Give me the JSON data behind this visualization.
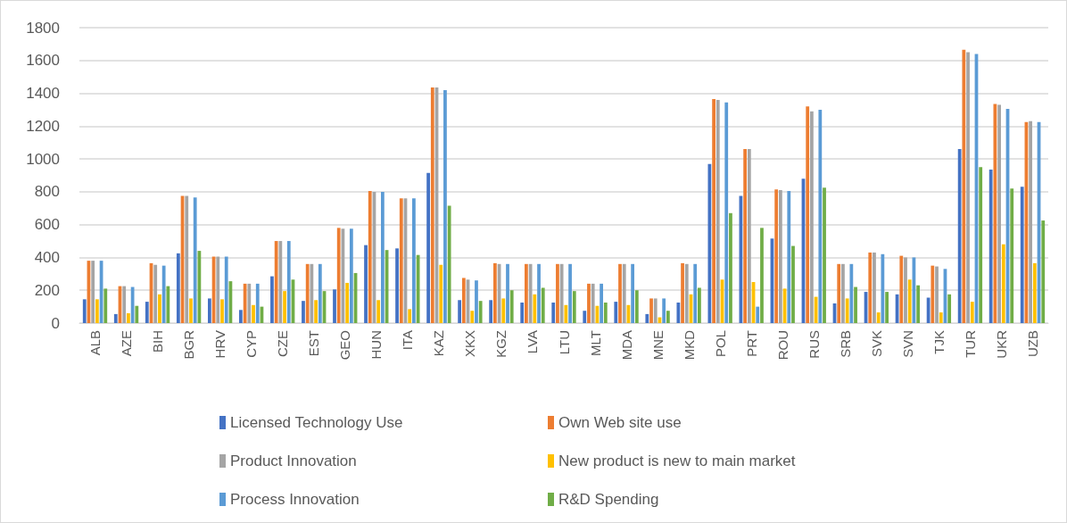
{
  "chart_data": {
    "type": "bar",
    "categories": [
      "ALB",
      "AZE",
      "BIH",
      "BGR",
      "HRV",
      "CYP",
      "CZE",
      "EST",
      "GEO",
      "HUN",
      "ITA",
      "KAZ",
      "XKX",
      "KGZ",
      "LVA",
      "LTU",
      "MLT",
      "MDA",
      "MNE",
      "MKD",
      "POL",
      "PRT",
      "ROU",
      "RUS",
      "SRB",
      "SVK",
      "SVN",
      "TJK",
      "TUR",
      "UKR",
      "UZB"
    ],
    "series": [
      {
        "name": "Licensed Technology Use",
        "color": "#4472c4",
        "values": [
          145,
          55,
          130,
          425,
          150,
          80,
          285,
          135,
          205,
          475,
          455,
          915,
          140,
          140,
          125,
          125,
          75,
          130,
          55,
          125,
          970,
          775,
          515,
          880,
          120,
          190,
          175,
          155,
          1060,
          935,
          830
        ]
      },
      {
        "name": "Own Web site use",
        "color": "#ed7d31",
        "values": [
          380,
          225,
          365,
          775,
          405,
          240,
          500,
          360,
          580,
          805,
          760,
          1435,
          275,
          365,
          360,
          360,
          240,
          360,
          150,
          365,
          1365,
          1060,
          815,
          1320,
          360,
          430,
          410,
          350,
          1665,
          1335,
          1225
        ]
      },
      {
        "name": "Product Innovation",
        "color": "#a5a5a5",
        "values": [
          380,
          225,
          355,
          775,
          405,
          240,
          500,
          360,
          575,
          800,
          760,
          1435,
          265,
          360,
          360,
          360,
          240,
          360,
          150,
          360,
          1360,
          1060,
          810,
          1290,
          360,
          430,
          400,
          345,
          1650,
          1330,
          1230
        ]
      },
      {
        "name": "New product is new to main market",
        "color": "#ffc000",
        "values": [
          145,
          60,
          175,
          150,
          145,
          110,
          195,
          140,
          245,
          140,
          85,
          355,
          75,
          150,
          175,
          110,
          105,
          110,
          35,
          175,
          265,
          250,
          210,
          160,
          150,
          65,
          265,
          65,
          130,
          480,
          365
        ]
      },
      {
        "name": "Process Innovation",
        "color": "#5b9bd5",
        "values": [
          380,
          220,
          350,
          765,
          405,
          240,
          500,
          360,
          575,
          800,
          760,
          1420,
          260,
          360,
          360,
          360,
          240,
          360,
          150,
          360,
          1345,
          100,
          805,
          1300,
          360,
          420,
          400,
          330,
          1640,
          1305,
          1225
        ]
      },
      {
        "name": "R&D Spending",
        "color": "#70ad47",
        "values": [
          210,
          105,
          225,
          440,
          255,
          100,
          265,
          195,
          305,
          445,
          415,
          715,
          135,
          200,
          215,
          195,
          125,
          200,
          75,
          215,
          670,
          580,
          470,
          825,
          220,
          190,
          230,
          175,
          950,
          820,
          625
        ]
      }
    ],
    "ylim": [
      0,
      1800
    ],
    "yticks": [
      0,
      200,
      400,
      600,
      800,
      1000,
      1200,
      1400,
      1600,
      1800
    ],
    "grid": "y",
    "legend": "bottom"
  }
}
